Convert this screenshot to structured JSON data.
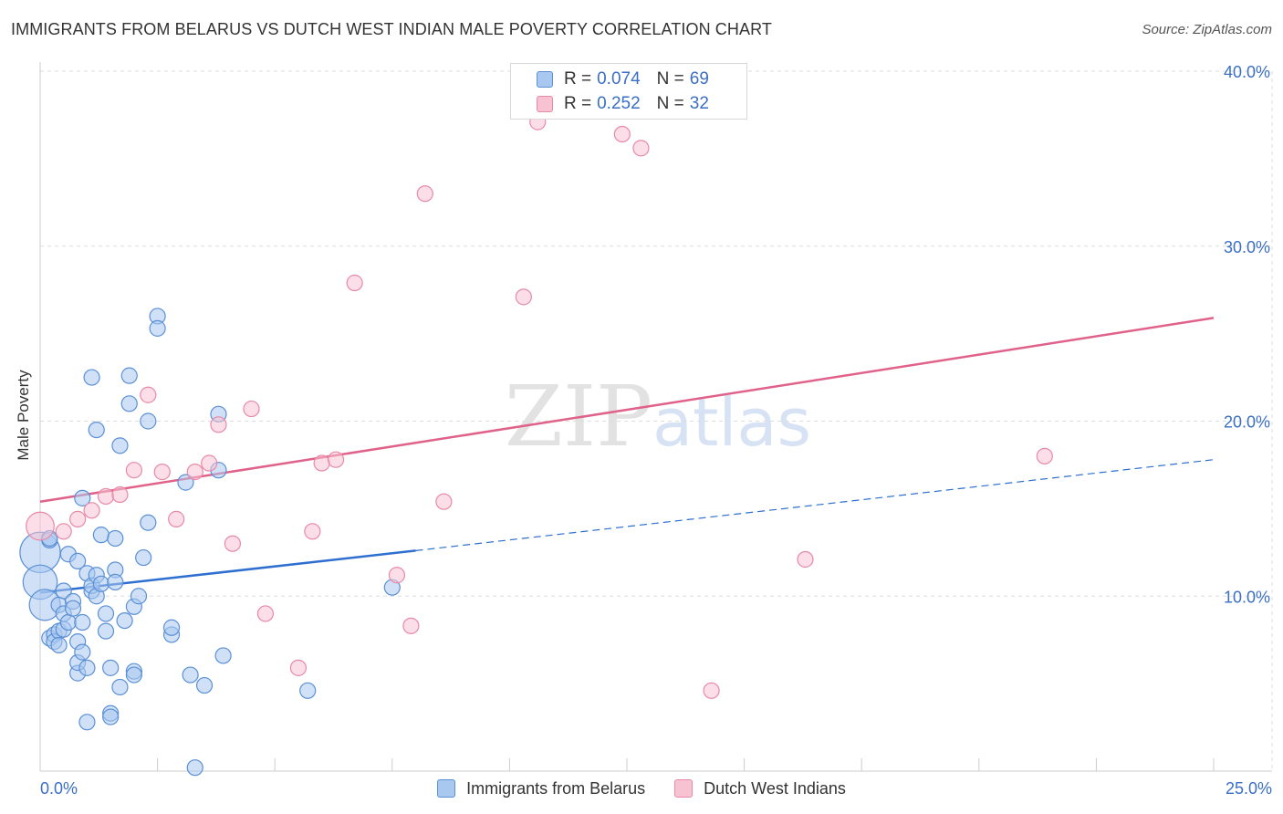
{
  "title": "IMMIGRANTS FROM BELARUS VS DUTCH WEST INDIAN MALE POVERTY CORRELATION CHART",
  "source": "Source: ZipAtlas.com",
  "watermark": {
    "zip": "ZIP",
    "atlas": "atlas"
  },
  "legend_top": {
    "rows": [
      {
        "r_label": "R =",
        "r_value": "0.074",
        "n_label": "N =",
        "n_value": "69"
      },
      {
        "r_label": "R =",
        "r_value": "0.252",
        "n_label": "N =",
        "n_value": "32"
      }
    ]
  },
  "legend_bottom": {
    "items": [
      {
        "label": "Immigrants from Belarus"
      },
      {
        "label": "Dutch West Indians"
      }
    ]
  },
  "colors": {
    "blue_fill": "#a9c8f0",
    "blue_stroke": "#5b90d6",
    "blue_line": "#2f6fcf",
    "pink_fill": "#f7c3d3",
    "pink_stroke": "#e88aa7",
    "pink_line": "#e0628a",
    "grid": "#dddddd",
    "axis_text": "#3b6fc4"
  },
  "chart_data": {
    "type": "scatter",
    "title": "IMMIGRANTS FROM BELARUS VS DUTCH WEST INDIAN MALE POVERTY CORRELATION CHART",
    "xlabel": "",
    "ylabel": "Male Poverty",
    "xlim": [
      0,
      25
    ],
    "ylim": [
      0,
      40
    ],
    "x_tick_labels": [
      "0.0%",
      "25.0%"
    ],
    "y_ticks": [
      10,
      20,
      30,
      40
    ],
    "y_tick_labels": [
      "10.0%",
      "20.0%",
      "30.0%",
      "40.0%"
    ],
    "grid": true,
    "series": [
      {
        "name": "Immigrants from Belarus",
        "r": 0.074,
        "n": 69,
        "trend": {
          "x0": 0,
          "y0": 10.2,
          "x1": 8,
          "y1": 12.6,
          "dashed_to_x": 25,
          "dashed_to_y": 17.8
        },
        "points": [
          [
            0.0,
            12.5,
            2.6
          ],
          [
            0.0,
            10.8,
            2.2
          ],
          [
            0.1,
            9.5,
            2.0
          ],
          [
            0.2,
            13.2,
            1.0
          ],
          [
            0.2,
            7.6,
            1.0
          ],
          [
            0.3,
            7.8,
            1.0
          ],
          [
            0.3,
            7.4,
            1.0
          ],
          [
            0.4,
            9.5,
            1.0
          ],
          [
            0.4,
            8.0,
            1.0
          ],
          [
            0.4,
            7.2,
            1.0
          ],
          [
            0.5,
            8.1,
            1.0
          ],
          [
            0.5,
            10.3,
            1.0
          ],
          [
            0.5,
            9.0,
            1.0
          ],
          [
            0.6,
            8.5,
            1.0
          ],
          [
            0.6,
            12.4,
            1.0
          ],
          [
            0.7,
            9.7,
            1.0
          ],
          [
            0.7,
            9.3,
            1.0
          ],
          [
            0.8,
            12.0,
            1.0
          ],
          [
            0.8,
            7.4,
            1.0
          ],
          [
            0.8,
            5.6,
            1.0
          ],
          [
            0.8,
            6.2,
            1.0
          ],
          [
            0.9,
            8.5,
            1.0
          ],
          [
            0.9,
            15.6,
            1.0
          ],
          [
            0.9,
            6.8,
            1.0
          ],
          [
            1.0,
            2.8,
            1.0
          ],
          [
            1.0,
            11.3,
            1.0
          ],
          [
            1.0,
            5.9,
            1.0
          ],
          [
            1.1,
            10.3,
            1.0
          ],
          [
            1.1,
            10.6,
            1.0
          ],
          [
            1.1,
            22.5,
            1.0
          ],
          [
            1.2,
            19.5,
            1.0
          ],
          [
            1.2,
            11.2,
            1.0
          ],
          [
            1.2,
            10.0,
            1.0
          ],
          [
            1.3,
            13.5,
            1.0
          ],
          [
            1.3,
            10.7,
            1.0
          ],
          [
            1.4,
            8.0,
            1.0
          ],
          [
            1.4,
            9.0,
            1.0
          ],
          [
            1.5,
            3.3,
            1.0
          ],
          [
            1.5,
            3.1,
            1.0
          ],
          [
            1.5,
            5.9,
            1.0
          ],
          [
            1.6,
            11.5,
            1.0
          ],
          [
            1.6,
            13.3,
            1.0
          ],
          [
            1.6,
            10.8,
            1.0
          ],
          [
            1.7,
            18.6,
            1.0
          ],
          [
            1.7,
            4.8,
            1.0
          ],
          [
            1.8,
            8.6,
            1.0
          ],
          [
            1.9,
            21.0,
            1.0
          ],
          [
            1.9,
            22.6,
            1.0
          ],
          [
            2.0,
            5.7,
            1.0
          ],
          [
            2.0,
            5.5,
            1.0
          ],
          [
            2.0,
            9.4,
            1.0
          ],
          [
            2.1,
            10.0,
            1.0
          ],
          [
            2.2,
            12.2,
            1.0
          ],
          [
            2.3,
            14.2,
            1.0
          ],
          [
            2.3,
            20.0,
            1.0
          ],
          [
            2.5,
            26.0,
            1.0
          ],
          [
            2.5,
            25.3,
            1.0
          ],
          [
            2.8,
            7.8,
            1.0
          ],
          [
            2.8,
            8.2,
            1.0
          ],
          [
            3.1,
            16.5,
            1.0
          ],
          [
            3.2,
            5.5,
            1.0
          ],
          [
            3.3,
            0.2,
            1.0
          ],
          [
            3.5,
            4.9,
            1.0
          ],
          [
            3.8,
            20.4,
            1.0
          ],
          [
            3.8,
            17.2,
            1.0
          ],
          [
            3.9,
            6.6,
            1.0
          ],
          [
            5.7,
            4.6,
            1.0
          ],
          [
            7.5,
            10.5,
            1.0
          ],
          [
            0.2,
            13.3,
            1.0
          ]
        ]
      },
      {
        "name": "Dutch West Indians",
        "r": 0.252,
        "n": 32,
        "trend": {
          "x0": 0,
          "y0": 15.4,
          "x1": 25,
          "y1": 25.9
        },
        "points": [
          [
            0.0,
            14.0,
            1.8
          ],
          [
            0.5,
            13.7,
            1.0
          ],
          [
            0.8,
            14.4,
            1.0
          ],
          [
            1.1,
            14.9,
            1.0
          ],
          [
            1.4,
            15.7,
            1.0
          ],
          [
            1.7,
            15.8,
            1.0
          ],
          [
            2.0,
            17.2,
            1.0
          ],
          [
            2.3,
            21.5,
            1.0
          ],
          [
            2.6,
            17.1,
            1.0
          ],
          [
            2.9,
            14.4,
            1.0
          ],
          [
            3.3,
            17.1,
            1.0
          ],
          [
            3.6,
            17.6,
            1.0
          ],
          [
            3.8,
            19.8,
            1.0
          ],
          [
            4.1,
            13.0,
            1.0
          ],
          [
            4.5,
            20.7,
            1.0
          ],
          [
            4.8,
            9.0,
            1.0
          ],
          [
            5.5,
            5.9,
            1.0
          ],
          [
            5.8,
            13.7,
            1.0
          ],
          [
            6.0,
            17.6,
            1.0
          ],
          [
            6.3,
            17.8,
            1.0
          ],
          [
            6.7,
            27.9,
            1.0
          ],
          [
            7.6,
            11.2,
            1.0
          ],
          [
            7.9,
            8.3,
            1.0
          ],
          [
            8.2,
            33.0,
            1.0
          ],
          [
            8.6,
            15.4,
            1.0
          ],
          [
            10.3,
            27.1,
            1.0
          ],
          [
            10.6,
            37.1,
            1.0
          ],
          [
            12.4,
            36.4,
            1.0
          ],
          [
            12.8,
            35.6,
            1.0
          ],
          [
            14.3,
            4.6,
            1.0
          ],
          [
            16.3,
            12.1,
            1.0
          ],
          [
            21.4,
            18.0,
            1.0
          ]
        ]
      }
    ]
  }
}
